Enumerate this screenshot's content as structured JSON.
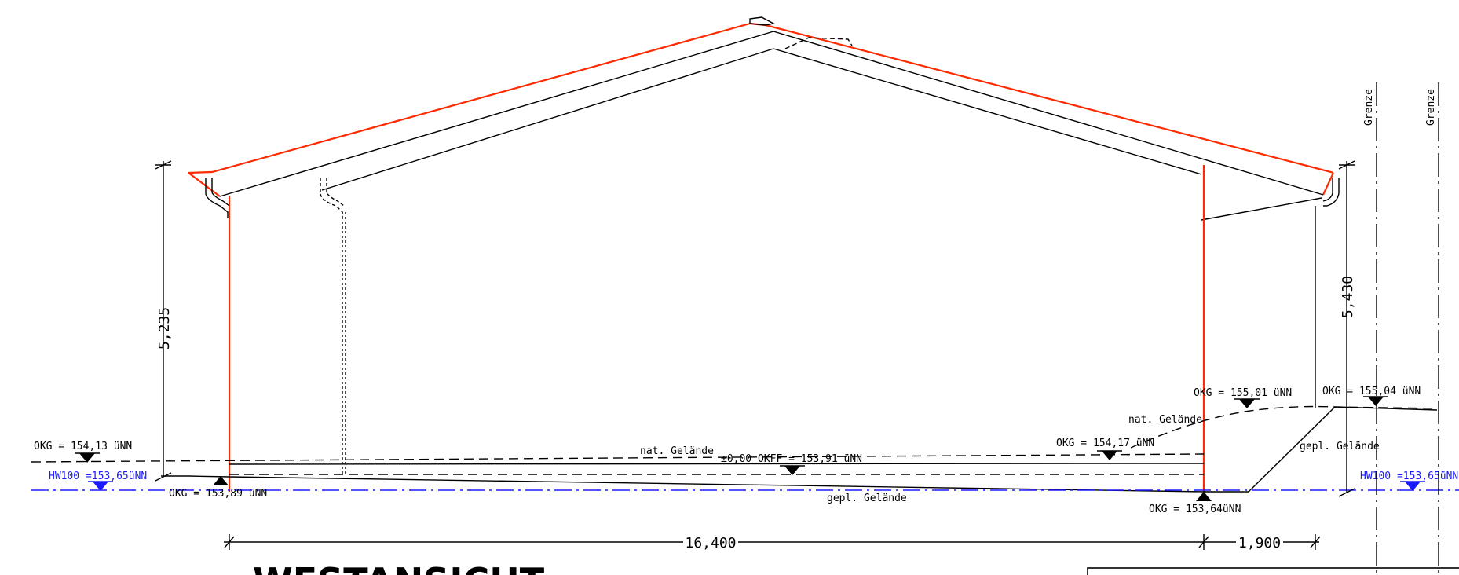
{
  "labels": {
    "okg_left_top": "OKG = 154,13 üNN",
    "hw_left": "HW100 =153,65üNN",
    "okg_left_bottom": "OKG = 153,89 üNN",
    "nat_gelaende_left": "nat. Gelände",
    "okff": "±0,00 OKFF = 153,91 üNN",
    "gepl_gelaende_mid": "gepl. Gelände",
    "okg_mid_right": "OKG = 154,17 üNN",
    "nat_gelaende_right": "nat. Gelände",
    "okg_155_01": "OKG = 155,01 üNN",
    "okg_155_04": "OKG = 155,04 üNN",
    "gepl_gelaende_right": "gepl. Gelände",
    "hw_right": "HW100 =153,65üNN",
    "okg_right_bottom": "OKG = 153,64üNN",
    "grenze_1": "Grenze",
    "grenze_2": "Grenze"
  },
  "dimensions": {
    "height_left": "5,235",
    "height_right": "5,430",
    "width_main": "16,400",
    "width_side": "1,900"
  },
  "title": "WESTANSICHT",
  "colors": {
    "outline": "#000000",
    "roof_red": "#ff2a00",
    "water_blue": "#1a1aff"
  }
}
